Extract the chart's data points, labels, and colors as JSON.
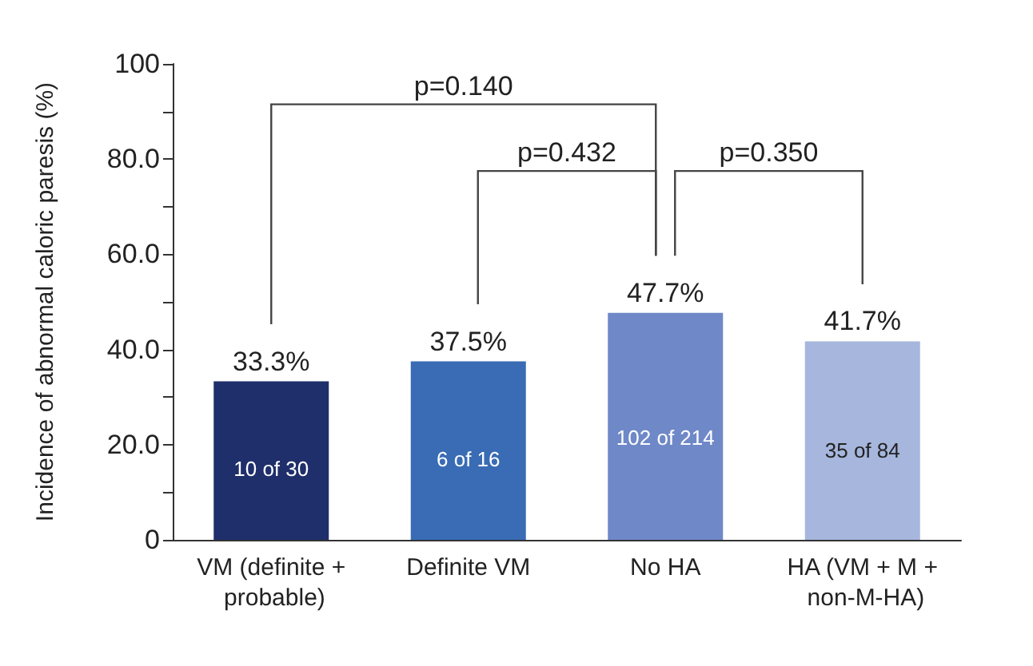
{
  "chart_data": {
    "type": "bar",
    "ylabel": "Incidence of abnormal caloric paresis (%)",
    "categories": [
      "VM (definite + probable)",
      "Definite VM",
      "No HA",
      "HA (VM + M + non-M-HA)"
    ],
    "values": [
      33.3,
      37.5,
      47.7,
      41.7
    ],
    "colors": [
      "#1f2f6b",
      "#3a6cb5",
      "#6f88c8",
      "#a6b6dd"
    ],
    "value_labels": [
      "33.3%",
      "37.5%",
      "47.7%",
      "41.7%"
    ],
    "ylim": [
      0,
      100
    ],
    "yticks": [
      0,
      {
        "value": 10,
        "label": null
      },
      {
        "value": 20,
        "label": "20.0"
      },
      {
        "value": 30,
        "label": null
      },
      {
        "value": 40,
        "label": "40.0"
      },
      {
        "value": 50,
        "label": null
      },
      {
        "value": 60,
        "label": "60.0"
      },
      {
        "value": 70,
        "label": null
      },
      {
        "value": 80,
        "label": "80.0"
      },
      {
        "value": 90,
        "label": null
      },
      100
    ],
    "annotations": [
      "p=0.140",
      "p=0.432",
      "p=0.350",
      "10 of 30",
      "6 of 16",
      "102 of 214",
      "35 of 84"
    ],
    "grid": false
  }
}
